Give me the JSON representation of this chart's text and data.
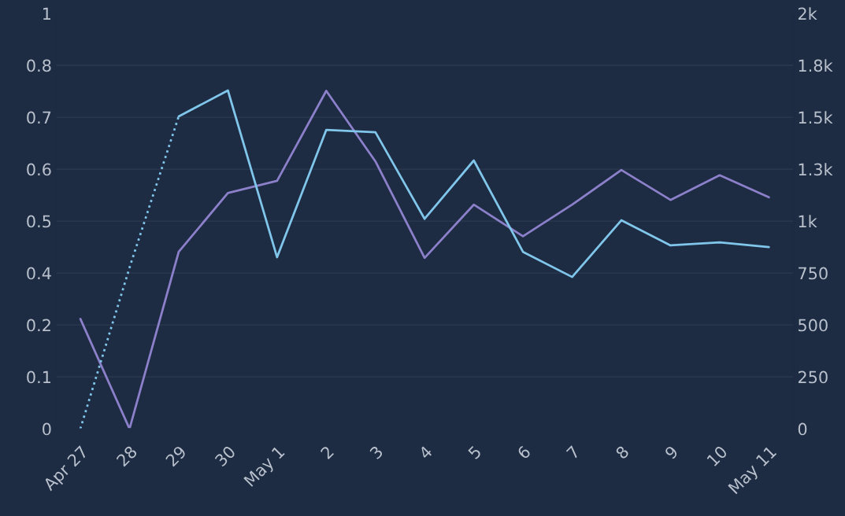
{
  "chart_data": {
    "type": "line",
    "categories": [
      "Apr 27",
      "28",
      "29",
      "30",
      "May 1",
      "2",
      "3",
      "4",
      "5",
      "6",
      "7",
      "8",
      "9",
      "10",
      "May 11"
    ],
    "ylim": [
      0,
      0.96
    ],
    "yticks": [
      0,
      {
        "value": 0.12,
        "label": "0.1"
      },
      {
        "value": 0.24,
        "label": "0.2"
      },
      {
        "value": 0.36,
        "label": "0.4"
      },
      {
        "value": 0.48,
        "label": "0.5"
      },
      0.6,
      {
        "value": 0.72,
        "label": "0.7"
      },
      {
        "value": 0.84,
        "label": "0.8"
      },
      {
        "value": 0.96,
        "label": "1"
      }
    ],
    "y2lim": [
      0,
      2000
    ],
    "y2ticks": [
      0,
      250,
      500,
      750,
      {
        "value": 1000,
        "label": "1k"
      },
      {
        "value": 1250,
        "label": "1.3k"
      },
      {
        "value": 1500,
        "label": "1.5k"
      },
      {
        "value": 1750,
        "label": "1.8k"
      },
      {
        "value": 2000,
        "label": "2k"
      }
    ],
    "grid": "y",
    "marker": "none",
    "series": [
      {
        "color": "#8b80c9",
        "line_style": "solid",
        "values": [
          0.254,
          0,
          0.409,
          0.545,
          0.573,
          0.781,
          0.618,
          0.395,
          0.518,
          0.445,
          0.518,
          0.598,
          0.529,
          0.586,
          0.535
        ]
      },
      {
        "color": "#80c6ea",
        "axis": "y2",
        "line_style": "dotted",
        "values": [
          0,
          776,
          1504,
          null,
          null,
          null,
          null,
          null,
          null,
          null,
          null,
          null,
          null,
          null,
          null
        ]
      },
      {
        "color": "#80c6ea",
        "axis": "y2",
        "line_style": "solid",
        "values": [
          null,
          null,
          1504,
          1629,
          826,
          1439,
          1428,
          1011,
          1292,
          852,
          731,
          1004,
          883,
          898,
          875
        ]
      }
    ]
  }
}
